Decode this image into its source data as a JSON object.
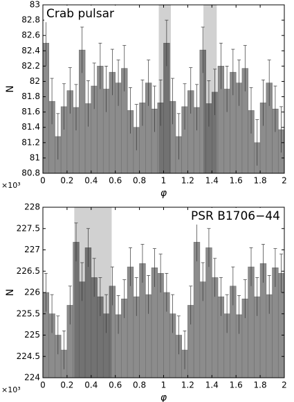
{
  "chart_data": [
    {
      "type": "histogram",
      "title": "Crab pulsar",
      "title_corner": "upper left",
      "x_label": "φ",
      "y_label": "N",
      "y_offset_label": "×10³",
      "bins": [
        0,
        0.05,
        0.1,
        0.15,
        0.2,
        0.25,
        0.3,
        0.35,
        0.4,
        0.45,
        0.5,
        0.55,
        0.6,
        0.65,
        0.7,
        0.75,
        0.8,
        0.85,
        0.9,
        0.95,
        1,
        1.05,
        1.1,
        1.15,
        1.2,
        1.25,
        1.3,
        1.35,
        1.4,
        1.45,
        1.5,
        1.55,
        1.6,
        1.65,
        1.7,
        1.75,
        1.8,
        1.85,
        1.9,
        1.95,
        2
      ],
      "values": [
        82.5,
        81.74,
        81.28,
        81.67,
        81.88,
        81.66,
        82.41,
        81.71,
        81.94,
        82.2,
        81.9,
        82.12,
        81.98,
        82.17,
        81.62,
        81.4,
        81.72,
        81.98,
        81.64,
        81.72,
        82.5,
        81.74,
        81.28,
        81.67,
        81.88,
        81.66,
        82.41,
        81.71,
        81.86,
        82.2,
        81.9,
        82.12,
        81.98,
        82.17,
        81.62,
        81.2,
        81.72,
        81.98,
        81.64,
        81.37
      ],
      "errors": [
        0.3,
        0.3,
        0.3,
        0.3,
        0.3,
        0.3,
        0.3,
        0.3,
        0.3,
        0.3,
        0.3,
        0.3,
        0.3,
        0.3,
        0.3,
        0.3,
        0.3,
        0.3,
        0.3,
        0.3,
        0.3,
        0.3,
        0.3,
        0.3,
        0.3,
        0.3,
        0.3,
        0.3,
        0.3,
        0.3,
        0.3,
        0.3,
        0.3,
        0.3,
        0.3,
        0.3,
        0.3,
        0.3,
        0.3,
        0.3
      ],
      "shaded_regions": [
        [
          0.96,
          1.06
        ],
        [
          1.33,
          1.44
        ]
      ],
      "color": "#8c8c8c",
      "error_color": "#333333",
      "shade_color": "#000000",
      "xlim": [
        0,
        2
      ],
      "xticks": [
        0,
        0.2,
        0.4,
        0.6,
        0.8,
        1,
        1.2,
        1.4,
        1.6,
        1.8,
        2
      ],
      "ylim": [
        80.8,
        83
      ],
      "yticks": [
        80.8,
        81,
        81.2,
        81.4,
        81.6,
        81.8,
        82,
        82.2,
        82.4,
        82.6,
        82.8,
        83
      ]
    },
    {
      "type": "histogram",
      "title": "PSR B1706−44",
      "title_corner": "upper right",
      "x_label": "φ",
      "y_label": "N",
      "y_offset_label": "×10³",
      "bins": [
        0,
        0.05,
        0.1,
        0.15,
        0.2,
        0.25,
        0.3,
        0.35,
        0.4,
        0.45,
        0.5,
        0.55,
        0.6,
        0.65,
        0.7,
        0.75,
        0.8,
        0.85,
        0.9,
        0.95,
        1,
        1.05,
        1.1,
        1.15,
        1.2,
        1.25,
        1.3,
        1.35,
        1.4,
        1.45,
        1.5,
        1.55,
        1.6,
        1.65,
        1.7,
        1.75,
        1.8,
        1.85,
        1.9,
        1.95,
        2
      ],
      "values": [
        226.0,
        225.5,
        225.0,
        224.65,
        225.7,
        227.18,
        226.25,
        227.05,
        226.35,
        225.9,
        225.5,
        226.15,
        225.48,
        225.85,
        226.6,
        225.9,
        226.68,
        225.95,
        226.58,
        226.45,
        226.0,
        225.5,
        225.0,
        224.65,
        225.7,
        227.18,
        226.25,
        227.05,
        226.35,
        225.9,
        225.5,
        226.15,
        225.48,
        225.85,
        226.6,
        225.9,
        226.68,
        225.95,
        226.58,
        226.45
      ],
      "errors": [
        0.45,
        0.45,
        0.45,
        0.45,
        0.45,
        0.45,
        0.45,
        0.45,
        0.45,
        0.45,
        0.45,
        0.45,
        0.45,
        0.45,
        0.45,
        0.45,
        0.45,
        0.45,
        0.45,
        0.45,
        0.45,
        0.45,
        0.45,
        0.45,
        0.45,
        0.45,
        0.45,
        0.45,
        0.45,
        0.45,
        0.45,
        0.45,
        0.45,
        0.45,
        0.45,
        0.45,
        0.45,
        0.45,
        0.45,
        0.45
      ],
      "shaded_regions": [
        [
          0.26,
          0.57
        ]
      ],
      "color": "#8c8c8c",
      "error_color": "#333333",
      "shade_color": "#000000",
      "xlim": [
        0,
        2
      ],
      "xticks": [
        0,
        0.2,
        0.4,
        0.6,
        0.8,
        1,
        1.2,
        1.4,
        1.6,
        1.8,
        2
      ],
      "ylim": [
        224,
        228
      ],
      "yticks": [
        224,
        224.5,
        225,
        225.5,
        226,
        226.5,
        227,
        227.5,
        228
      ]
    }
  ]
}
